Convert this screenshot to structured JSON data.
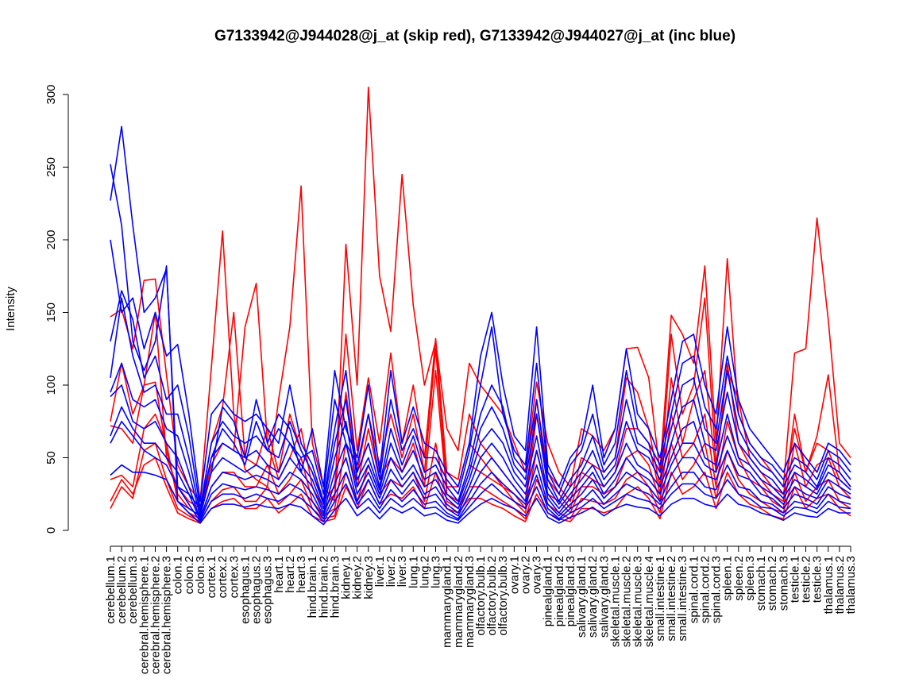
{
  "chart_data": {
    "type": "line",
    "title": "G7133942@J944028@j_at (skip red), G7133942@J944027@j_at (inc blue)",
    "ylabel": "Intensity",
    "xlabel": "",
    "ylim": [
      0,
      300
    ],
    "yticks": [
      0,
      50,
      100,
      150,
      200,
      250,
      300
    ],
    "grid": false,
    "categories": [
      "cerebellum.1",
      "cerebellum.2",
      "cerebellum.3",
      "cerebral.hemisphere.1",
      "cerebral.hemisphere.2",
      "cerebral.hemisphere.3",
      "colon.1",
      "colon.2",
      "colon.3",
      "cortex.1",
      "cortex.2",
      "cortex.3",
      "esophagus.1",
      "esophagus.2",
      "esophagus.3",
      "heart.1",
      "heart.2",
      "heart.3",
      "hind.brain.1",
      "hind.brain.2",
      "hind.brain.3",
      "kidney.1",
      "kidney.2",
      "kidney.3",
      "liver.1",
      "liver.2",
      "liver.3",
      "lung.1",
      "lung.2",
      "lung.3",
      "mammarygland.1",
      "mammarygland.2",
      "mammarygland.3",
      "olfactory.bulb.1",
      "olfactory.bulb.2",
      "olfactory.bulb.3",
      "ovary.1",
      "ovary.2",
      "ovary.3",
      "pinealgland.1",
      "pinealgland.2",
      "pinealgland.3",
      "salivary.gland.1",
      "salivary.gland.2",
      "salivary.gland.3",
      "skeletal.muscle.1",
      "skeletal.muscle.2",
      "skeletal.muscle.3",
      "skeletal.muscle.4",
      "small.intestine.1",
      "small.intestine.2",
      "small.intestine.3",
      "spinal.cord.1",
      "spinal.cord.2",
      "spinal.cord.3",
      "spleen.1",
      "spleen.2",
      "spleen.3",
      "stomach.1",
      "stomach.2",
      "stomach.3",
      "testicle.1",
      "testicle.2",
      "testicle.3",
      "thalamus.1",
      "thalamus.2",
      "thalamus.3"
    ],
    "series": [
      {
        "color": "#ff0000",
        "values": [
          147,
          152,
          125,
          172,
          173,
          107,
          45,
          30,
          20,
          112,
          206,
          80,
          42,
          35,
          30,
          90,
          140,
          237,
          60,
          30,
          20,
          197,
          100,
          305,
          175,
          137,
          245,
          155,
          100,
          130,
          70,
          55,
          115,
          100,
          90,
          80,
          60,
          40,
          102,
          60,
          40,
          30,
          70,
          65,
          55,
          70,
          125,
          126,
          105,
          40,
          148,
          135,
          115,
          182,
          60,
          187,
          80,
          60,
          50,
          40,
          30,
          122,
          125,
          215,
          145,
          60,
          50
        ]
      },
      {
        "color": "#ff0000",
        "values": [
          75,
          115,
          80,
          100,
          150,
          50,
          30,
          20,
          15,
          60,
          85,
          150,
          50,
          45,
          70,
          40,
          80,
          55,
          40,
          20,
          30,
          135,
          55,
          105,
          60,
          122,
          60,
          100,
          50,
          132,
          40,
          35,
          80,
          60,
          50,
          40,
          30,
          20,
          90,
          40,
          30,
          20,
          50,
          45,
          40,
          50,
          105,
          95,
          70,
          30,
          135,
          80,
          100,
          160,
          45,
          110,
          90,
          50,
          40,
          30,
          25,
          70,
          40,
          65,
          107,
          40,
          30
        ]
      },
      {
        "color": "#ff0000",
        "values": [
          72,
          70,
          60,
          100,
          102,
          55,
          25,
          15,
          10,
          45,
          60,
          55,
          140,
          170,
          60,
          35,
          50,
          70,
          30,
          15,
          25,
          95,
          40,
          80,
          45,
          80,
          50,
          80,
          40,
          125,
          30,
          30,
          60,
          50,
          40,
          30,
          25,
          15,
          80,
          35,
          25,
          15,
          40,
          35,
          30,
          40,
          70,
          70,
          60,
          25,
          105,
          60,
          90,
          110,
          40,
          115,
          60,
          45,
          35,
          25,
          20,
          80,
          40,
          60,
          55,
          35,
          28
        ]
      },
      {
        "color": "#ff0000",
        "values": [
          35,
          38,
          30,
          70,
          80,
          60,
          20,
          12,
          8,
          30,
          40,
          40,
          30,
          30,
          45,
          25,
          35,
          50,
          20,
          10,
          15,
          60,
          30,
          70,
          35,
          50,
          40,
          60,
          30,
          110,
          25,
          20,
          45,
          40,
          35,
          30,
          20,
          12,
          55,
          25,
          20,
          12,
          30,
          30,
          25,
          30,
          50,
          55,
          45,
          20,
          80,
          50,
          60,
          80,
          30,
          75,
          50,
          35,
          30,
          20,
          15,
          60,
          30,
          45,
          50,
          30,
          22
        ]
      },
      {
        "color": "#ff0000",
        "values": [
          15,
          30,
          22,
          55,
          60,
          35,
          15,
          10,
          6,
          20,
          28,
          30,
          20,
          20,
          30,
          18,
          25,
          35,
          15,
          8,
          10,
          40,
          20,
          45,
          25,
          35,
          30,
          40,
          20,
          60,
          20,
          15,
          30,
          30,
          25,
          20,
          15,
          8,
          35,
          18,
          12,
          8,
          22,
          20,
          18,
          22,
          35,
          40,
          30,
          12,
          60,
          35,
          45,
          60,
          22,
          55,
          35,
          25,
          20,
          15,
          12,
          40,
          20,
          30,
          35,
          20,
          15
        ]
      },
      {
        "color": "#ff0000",
        "values": [
          20,
          35,
          25,
          45,
          50,
          30,
          12,
          8,
          5,
          15,
          20,
          22,
          15,
          15,
          22,
          12,
          18,
          25,
          10,
          6,
          8,
          30,
          15,
          35,
          18,
          25,
          22,
          30,
          15,
          40,
          15,
          12,
          22,
          22,
          18,
          15,
          10,
          6,
          25,
          12,
          8,
          6,
          15,
          15,
          12,
          15,
          25,
          30,
          22,
          8,
          40,
          25,
          30,
          40,
          15,
          40,
          25,
          18,
          15,
          10,
          8,
          30,
          15,
          22,
          25,
          15,
          10
        ]
      },
      {
        "color": "#0000ff",
        "values": [
          252,
          210,
          130,
          110,
          130,
          182,
          20,
          15,
          10,
          40,
          85,
          75,
          50,
          90,
          60,
          80,
          70,
          40,
          70,
          30,
          110,
          70,
          50,
          100,
          40,
          110,
          60,
          85,
          60,
          55,
          40,
          30,
          60,
          120,
          150,
          100,
          65,
          55,
          140,
          45,
          30,
          50,
          60,
          100,
          50,
          70,
          125,
          80,
          70,
          50,
          90,
          130,
          135,
          100,
          80,
          140,
          90,
          70,
          60,
          50,
          40,
          60,
          50,
          40,
          60,
          55,
          45
        ]
      },
      {
        "color": "#0000ff",
        "values": [
          227,
          278,
          210,
          150,
          160,
          180,
          30,
          25,
          15,
          50,
          70,
          60,
          45,
          75,
          55,
          70,
          60,
          50,
          55,
          25,
          90,
          60,
          45,
          80,
          35,
          90,
          55,
          70,
          50,
          50,
          35,
          25,
          55,
          100,
          140,
          80,
          55,
          45,
          115,
          40,
          25,
          45,
          55,
          80,
          45,
          60,
          110,
          70,
          60,
          45,
          80,
          115,
          120,
          85,
          70,
          120,
          80,
          60,
          50,
          45,
          35,
          50,
          45,
          35,
          55,
          50,
          40
        ]
      },
      {
        "color": "#0000ff",
        "values": [
          200,
          150,
          160,
          125,
          150,
          120,
          128,
          80,
          20,
          80,
          90,
          80,
          75,
          80,
          70,
          60,
          100,
          60,
          45,
          20,
          70,
          110,
          40,
          60,
          30,
          70,
          45,
          65,
          40,
          45,
          30,
          20,
          45,
          80,
          100,
          85,
          50,
          40,
          90,
          35,
          20,
          35,
          45,
          65,
          40,
          50,
          90,
          60,
          55,
          40,
          70,
          100,
          105,
          70,
          60,
          110,
          70,
          55,
          45,
          40,
          30,
          45,
          40,
          30,
          50,
          45,
          35
        ]
      },
      {
        "color": "#0000ff",
        "values": [
          130,
          165,
          145,
          105,
          120,
          90,
          100,
          65,
          15,
          60,
          75,
          65,
          60,
          65,
          55,
          50,
          75,
          55,
          40,
          18,
          60,
          90,
          35,
          50,
          28,
          60,
          40,
          55,
          35,
          40,
          25,
          18,
          40,
          70,
          85,
          70,
          45,
          35,
          80,
          30,
          18,
          30,
          40,
          55,
          35,
          45,
          75,
          55,
          50,
          35,
          60,
          85,
          90,
          60,
          55,
          95,
          60,
          50,
          40,
          35,
          25,
          40,
          35,
          28,
          45,
          40,
          30
        ]
      },
      {
        "color": "#0000ff",
        "values": [
          105,
          160,
          120,
          95,
          100,
          80,
          80,
          50,
          12,
          50,
          60,
          55,
          50,
          55,
          45,
          40,
          60,
          45,
          35,
          15,
          50,
          75,
          30,
          45,
          25,
          50,
          35,
          45,
          30,
          35,
          22,
          15,
          35,
          60,
          70,
          60,
          40,
          30,
          65,
          25,
          15,
          25,
          35,
          45,
          30,
          40,
          60,
          45,
          40,
          30,
          50,
          70,
          75,
          50,
          45,
          80,
          50,
          45,
          35,
          30,
          22,
          35,
          30,
          25,
          40,
          35,
          28
        ]
      },
      {
        "color": "#0000ff",
        "values": [
          95,
          115,
          90,
          85,
          90,
          70,
          65,
          40,
          10,
          40,
          50,
          45,
          40,
          45,
          40,
          35,
          50,
          40,
          30,
          12,
          40,
          60,
          25,
          40,
          22,
          42,
          30,
          40,
          25,
          30,
          18,
          12,
          30,
          50,
          60,
          50,
          35,
          25,
          55,
          22,
          12,
          22,
          30,
          40,
          25,
          35,
          50,
          40,
          35,
          25,
          45,
          60,
          60,
          45,
          40,
          65,
          45,
          40,
          30,
          25,
          18,
          30,
          25,
          22,
          35,
          30,
          25
        ]
      },
      {
        "color": "#0000ff",
        "values": [
          92,
          100,
          75,
          70,
          75,
          60,
          50,
          30,
          8,
          30,
          40,
          38,
          35,
          38,
          35,
          30,
          40,
          35,
          25,
          10,
          32,
          50,
          20,
          35,
          18,
          35,
          25,
          35,
          22,
          25,
          15,
          10,
          25,
          40,
          50,
          40,
          30,
          20,
          45,
          18,
          10,
          18,
          25,
          35,
          22,
          30,
          40,
          35,
          30,
          20,
          38,
          50,
          50,
          38,
          35,
          55,
          38,
          35,
          25,
          22,
          15,
          25,
          22,
          18,
          30,
          25,
          22
        ]
      },
      {
        "color": "#0000ff",
        "values": [
          65,
          85,
          70,
          60,
          60,
          50,
          40,
          25,
          7,
          25,
          32,
          30,
          28,
          30,
          28,
          25,
          32,
          28,
          20,
          8,
          25,
          40,
          18,
          28,
          15,
          28,
          20,
          28,
          18,
          20,
          12,
          8,
          20,
          32,
          40,
          32,
          25,
          18,
          38,
          15,
          8,
          15,
          20,
          28,
          18,
          25,
          32,
          28,
          25,
          18,
          30,
          40,
          40,
          30,
          28,
          45,
          30,
          28,
          20,
          18,
          12,
          20,
          18,
          15,
          25,
          20,
          18
        ]
      },
      {
        "color": "#0000ff",
        "values": [
          60,
          75,
          65,
          55,
          50,
          45,
          30,
          18,
          6,
          20,
          25,
          25,
          22,
          25,
          22,
          20,
          25,
          22,
          15,
          6,
          20,
          32,
          15,
          22,
          12,
          22,
          16,
          22,
          15,
          16,
          10,
          7,
          16,
          25,
          32,
          25,
          20,
          15,
          30,
          12,
          7,
          12,
          16,
          22,
          15,
          20,
          25,
          22,
          20,
          15,
          25,
          32,
          32,
          25,
          22,
          35,
          25,
          22,
          16,
          15,
          10,
          16,
          15,
          12,
          20,
          16,
          15
        ]
      },
      {
        "color": "#0000ff",
        "values": [
          38,
          45,
          40,
          40,
          38,
          35,
          20,
          12,
          5,
          15,
          18,
          18,
          16,
          18,
          16,
          15,
          18,
          16,
          10,
          4,
          14,
          22,
          10,
          16,
          8,
          16,
          12,
          16,
          10,
          12,
          7,
          5,
          12,
          18,
          22,
          18,
          15,
          10,
          22,
          9,
          5,
          9,
          12,
          16,
          10,
          15,
          18,
          16,
          15,
          10,
          18,
          22,
          22,
          18,
          16,
          25,
          18,
          16,
          12,
          10,
          7,
          12,
          10,
          9,
          15,
          12,
          12
        ]
      }
    ]
  }
}
